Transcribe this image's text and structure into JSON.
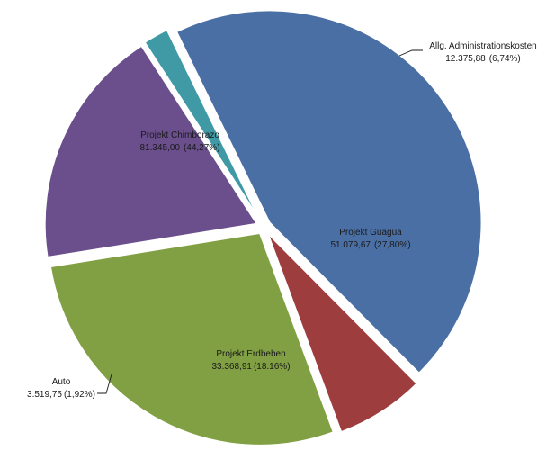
{
  "chart_data": {
    "type": "pie",
    "title": "",
    "colors": [
      "#4a6fa5",
      "#9e3d3d",
      "#80a043",
      "#6b4f8d",
      "#3f9aa6"
    ],
    "slices": [
      {
        "name": "Projekt Chimborazo",
        "value": 81345.0,
        "value_label": "81.345,00",
        "percent_label": "(44,27%)",
        "color": "#4a6fa5"
      },
      {
        "name": "Allg. Administrationskosten",
        "value": 12375.88,
        "value_label": "12.375,88",
        "percent_label": "(6,74%)",
        "color": "#9e3d3d"
      },
      {
        "name": "Projekt Guagua",
        "value": 51079.67,
        "value_label": "51.079,67",
        "percent_label": "(27,80%)",
        "color": "#80a043"
      },
      {
        "name": "Projekt Erdbeben",
        "value": 33368.91,
        "value_label": "33.368,91",
        "percent_label": "(18.16%)",
        "color": "#6b4f8d"
      },
      {
        "name": "Auto",
        "value": 3519.75,
        "value_label": "3.519,75",
        "percent_label": "(1,92%)",
        "color": "#3f9aa6"
      }
    ]
  }
}
